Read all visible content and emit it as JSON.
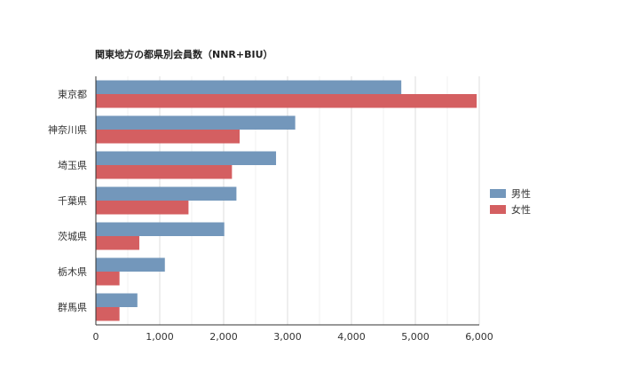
{
  "chart_data": {
    "type": "bar",
    "orientation": "horizontal",
    "title": "関東地方の都県別会員数（NNR+BIU）",
    "categories": [
      "東京都",
      "神奈川県",
      "埼玉県",
      "千葉県",
      "茨城県",
      "栃木県",
      "群馬県"
    ],
    "series": [
      {
        "name": "男性",
        "color": "#7397bb",
        "values": [
          4780,
          3120,
          2820,
          2200,
          2010,
          1080,
          650
        ]
      },
      {
        "name": "女性",
        "color": "#d45f61",
        "values": [
          5960,
          2250,
          2130,
          1450,
          680,
          370,
          370
        ]
      }
    ],
    "xlim": [
      0,
      6000
    ],
    "xticks": [
      0,
      1000,
      2000,
      3000,
      4000,
      5000,
      6000
    ],
    "xtick_labels": [
      "0",
      "1,000",
      "2,000",
      "3,000",
      "4,000",
      "5,000",
      "6,000"
    ],
    "xlabel": "",
    "ylabel": "",
    "grid": true,
    "legend_position": "right"
  }
}
